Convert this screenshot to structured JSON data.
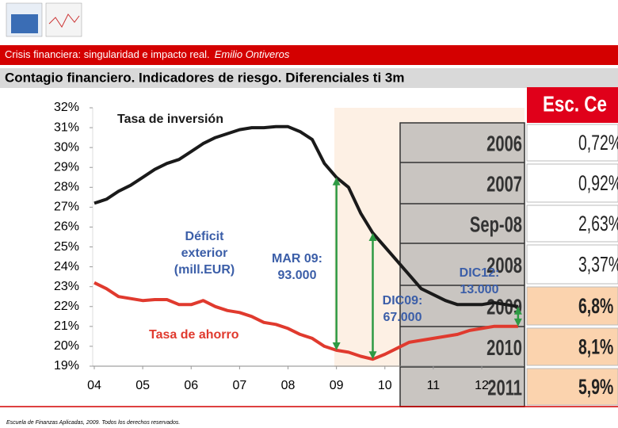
{
  "header": {
    "subtitle": "Crisis financiera: singularidad e impacto real.",
    "author": "Emilio Ontiveros",
    "title": "Contagio financiero. Indicadores de riesgo. Diferenciales ti 3m"
  },
  "footer": "Escuela de Finanzas Aplicadas, 2009. Todos los derechos reservados.",
  "table": {
    "header": "Esc. Ce",
    "rows": [
      [
        "2006",
        "0,72%"
      ],
      [
        "2007",
        "0,92%"
      ],
      [
        "Sep-08",
        "2,63%"
      ],
      [
        "2008",
        "3,37%"
      ],
      [
        "2009",
        "6,8%"
      ],
      [
        "2010",
        "8,1%"
      ],
      [
        "2011",
        "5,9%"
      ]
    ]
  },
  "chart_data": {
    "type": "line",
    "x": [
      2004,
      2004.25,
      2004.5,
      2004.75,
      2005,
      2005.25,
      2005.5,
      2005.75,
      2006,
      2006.25,
      2006.5,
      2006.75,
      2007,
      2007.25,
      2007.5,
      2007.75,
      2008,
      2008.25,
      2008.5,
      2008.75,
      2009,
      2009.25,
      2009.5,
      2009.75,
      2010,
      2010.25,
      2010.5,
      2010.75,
      2011,
      2011.25,
      2011.5,
      2011.75,
      2012,
      2012.25,
      2012.5,
      2012.75
    ],
    "series": [
      {
        "name": "Tasa de inversión",
        "color": "#1a1a1a",
        "values": [
          27.2,
          27.4,
          27.8,
          28.1,
          28.5,
          28.9,
          29.2,
          29.4,
          29.8,
          30.2,
          30.5,
          30.7,
          30.9,
          31.0,
          31.0,
          31.05,
          31.05,
          30.8,
          30.4,
          29.2,
          28.5,
          28.0,
          26.7,
          25.7,
          25.0,
          24.3,
          23.6,
          22.9,
          22.6,
          22.3,
          22.1,
          22.1,
          22.1,
          22.2,
          22.1,
          22.0
        ]
      },
      {
        "name": "Tasa de ahorro",
        "color": "#e03a2e",
        "values": [
          23.2,
          22.9,
          22.5,
          22.4,
          22.3,
          22.35,
          22.35,
          22.1,
          22.1,
          22.3,
          22.0,
          21.8,
          21.7,
          21.5,
          21.2,
          21.1,
          20.9,
          20.6,
          20.4,
          20.0,
          19.8,
          19.7,
          19.5,
          19.35,
          19.6,
          19.9,
          20.2,
          20.3,
          20.4,
          20.5,
          20.6,
          20.8,
          20.9,
          21.0,
          21.0,
          21.0
        ]
      }
    ],
    "annotations": [
      {
        "lines": [
          "Déficit",
          "exterior",
          "(mill.EUR)"
        ]
      },
      {
        "lines": [
          "MAR 09:",
          "93.000"
        ]
      },
      {
        "lines": [
          "DIC09:",
          "67.000"
        ]
      },
      {
        "lines": [
          "DIC12:",
          "13.000"
        ]
      }
    ],
    "xlim": [
      2004,
      2012.85
    ],
    "xticks": [
      {
        "value": 2004,
        "label": "04"
      },
      {
        "value": 2005,
        "label": "05"
      },
      {
        "value": 2006,
        "label": "06"
      },
      {
        "value": 2007,
        "label": "07"
      },
      {
        "value": 2008,
        "label": "08"
      },
      {
        "value": 2009,
        "label": "09"
      },
      {
        "value": 2010,
        "label": "10"
      },
      {
        "value": 2011,
        "label": "11"
      },
      {
        "value": 2012,
        "label": "12"
      }
    ],
    "ylim": [
      19,
      32
    ],
    "yticks": [
      {
        "value": 19,
        "label": "19%"
      },
      {
        "value": 20,
        "label": "20%"
      },
      {
        "value": 21,
        "label": "21%"
      },
      {
        "value": 22,
        "label": "22%"
      },
      {
        "value": 23,
        "label": "23%"
      },
      {
        "value": 24,
        "label": "24%"
      },
      {
        "value": 25,
        "label": "25%"
      },
      {
        "value": 26,
        "label": "26%"
      },
      {
        "value": 27,
        "label": "27%"
      },
      {
        "value": 28,
        "label": "28%"
      },
      {
        "value": 29,
        "label": "29%"
      },
      {
        "value": 30,
        "label": "30%"
      },
      {
        "value": 31,
        "label": "31%"
      },
      {
        "value": 32,
        "label": "32%"
      }
    ]
  }
}
